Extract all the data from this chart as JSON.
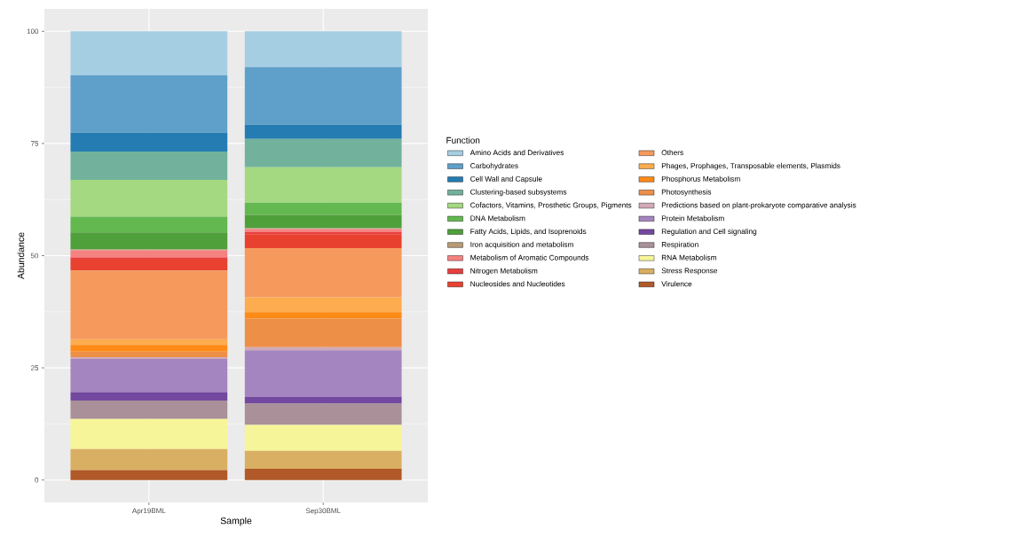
{
  "chart_data": {
    "type": "bar",
    "stacked": true,
    "xlabel": "Sample",
    "ylabel": "Abundance",
    "legend_title": "Function",
    "legend": "right",
    "grid": true,
    "categories": [
      "Apr19BML",
      "Sep30BML"
    ],
    "ylim": [
      -5,
      105
    ],
    "yticks": [
      0,
      25,
      50,
      75,
      100
    ],
    "series": [
      {
        "name": "Virulence",
        "color": "#b15928",
        "values": [
          2.2,
          2.5
        ]
      },
      {
        "name": "Stress Response",
        "color": "#d9af63",
        "values": [
          4.7,
          4.0
        ]
      },
      {
        "name": "RNA Metabolism",
        "color": "#f7f599",
        "values": [
          6.7,
          5.8
        ]
      },
      {
        "name": "Respiration",
        "color": "#a99099",
        "values": [
          4.1,
          4.7
        ]
      },
      {
        "name": "Regulation and Cell signaling",
        "color": "#73489f",
        "values": [
          1.9,
          1.5
        ]
      },
      {
        "name": "Protein Metabolism",
        "color": "#a585bf",
        "values": [
          7.4,
          10.4
        ]
      },
      {
        "name": "Predictions based on plant-prokaryote comparative analysis",
        "color": "#d1aab7",
        "values": [
          0.4,
          0.7
        ]
      },
      {
        "name": "Photosynthesis",
        "color": "#ed8f47",
        "values": [
          1.2,
          6.4
        ]
      },
      {
        "name": "Phosphorus Metabolism",
        "color": "#fe8b15",
        "values": [
          1.5,
          1.4
        ]
      },
      {
        "name": "Phages, Prophages, Transposable elements, Plasmids",
        "color": "#fdac4f",
        "values": [
          1.3,
          3.3
        ]
      },
      {
        "name": "Others",
        "color": "#f6995c",
        "values": [
          15.3,
          11.0
        ]
      },
      {
        "name": "Nucleosides and Nucleotides",
        "color": "#e8412f",
        "values": [
          2.4,
          3.1
        ]
      },
      {
        "name": "Nitrogen Metabolism",
        "color": "#e93e3f",
        "values": [
          0.5,
          0.5
        ]
      },
      {
        "name": "Metabolism of Aromatic Compounds",
        "color": "#f68181",
        "values": [
          1.6,
          0.6
        ]
      },
      {
        "name": "Iron acquisition and metabolism",
        "color": "#b89b74",
        "values": [
          0.2,
          0.2
        ]
      },
      {
        "name": "Fatty Acids, Lipids, and Isoprenoids",
        "color": "#4f9f3b",
        "values": [
          3.8,
          3.0
        ]
      },
      {
        "name": "DNA Metabolism",
        "color": "#63b84f",
        "values": [
          3.5,
          2.7
        ]
      },
      {
        "name": "Cofactors, Vitamins, Prosthetic Groups, Pigments",
        "color": "#a5d981",
        "values": [
          8.2,
          7.9
        ]
      },
      {
        "name": "Clustering-based subsystems",
        "color": "#72b29c",
        "values": [
          6.3,
          6.3
        ]
      },
      {
        "name": "Cell Wall and Capsule",
        "color": "#257cb2",
        "values": [
          4.2,
          3.2
        ]
      },
      {
        "name": "Carbohydrates",
        "color": "#5fa0ca",
        "values": [
          12.8,
          12.8
        ]
      },
      {
        "name": "Amino Acids and Derivatives",
        "color": "#a6cee3",
        "values": [
          9.8,
          8.0
        ]
      }
    ]
  }
}
